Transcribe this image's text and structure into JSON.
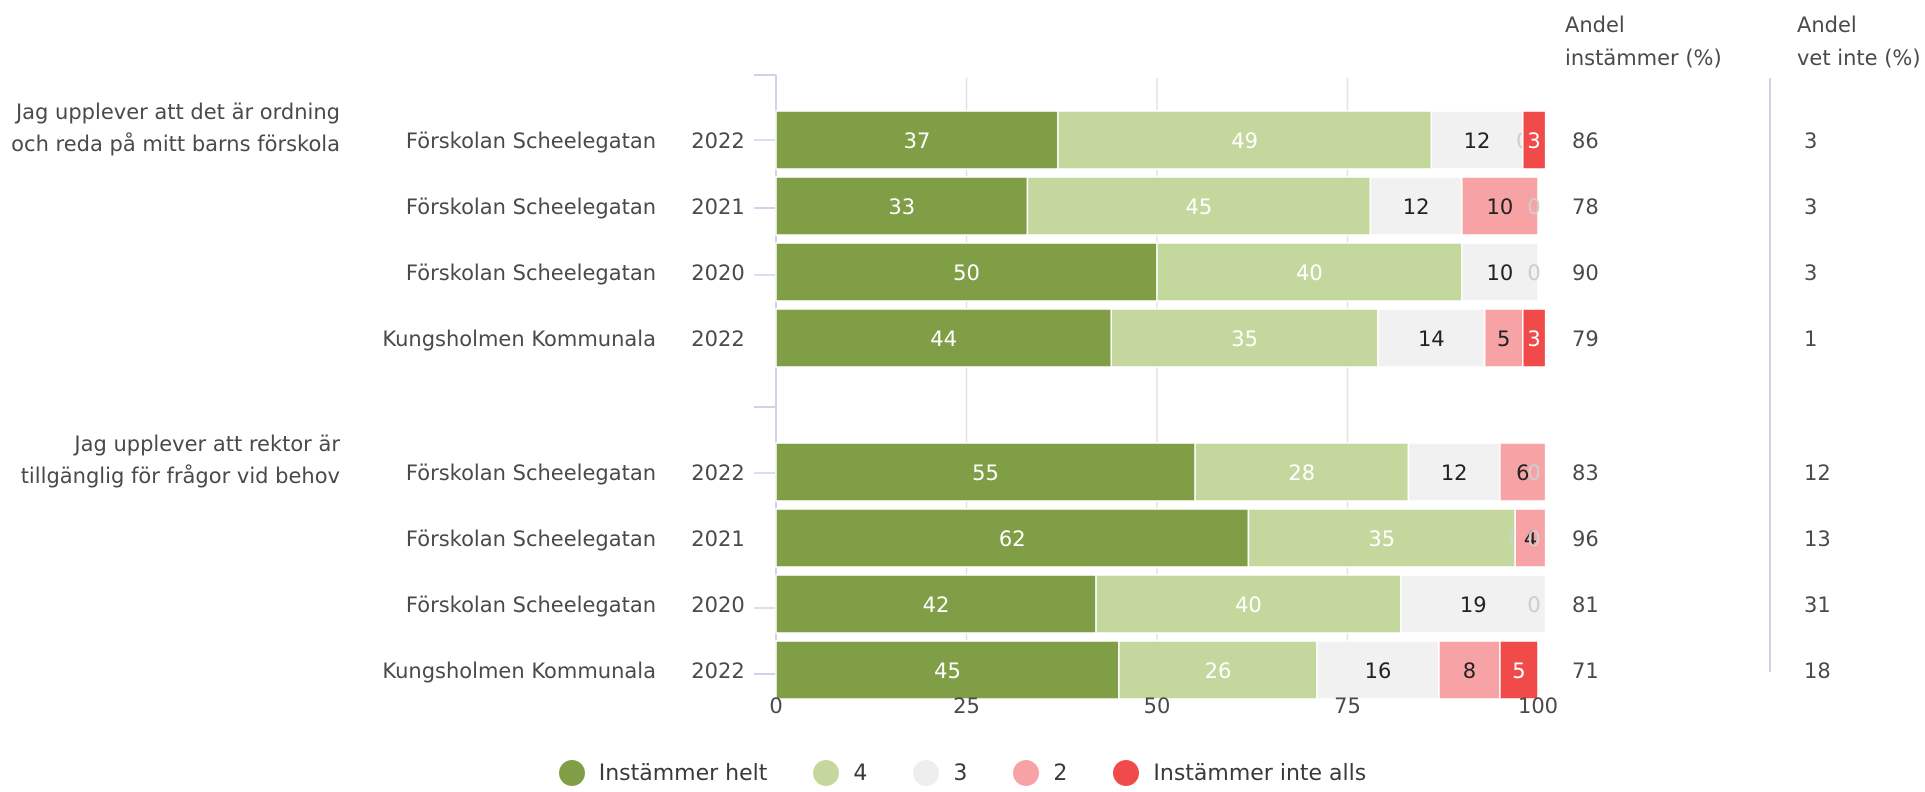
{
  "chart_data": {
    "type": "bar",
    "orientation": "horizontal",
    "stacked": true,
    "xlim": [
      0,
      100
    ],
    "xticks": [
      "0",
      "25",
      "50",
      "75",
      "100"
    ],
    "grid": true,
    "legend_position": "bottom",
    "side_columns": [
      "Andel instämmer (%)",
      "Andel vet inte (%)"
    ],
    "legend": [
      {
        "name": "Instämmer helt",
        "color": "#7f9e45"
      },
      {
        "name": "4",
        "color": "#c4d89d"
      },
      {
        "name": "3",
        "color": "#f1f1f1"
      },
      {
        "name": "2",
        "color": "#f7a3a6"
      },
      {
        "name": "Instämmer inte alls",
        "color": "#f04a4a"
      }
    ],
    "groups": [
      {
        "question": "Jag upplever att det är ordning och reda på mitt barns förskola",
        "rows": [
          {
            "unit": "Förskolan Scheelegatan",
            "year": "2022",
            "values": [
              37,
              49,
              12,
              0,
              3
            ],
            "agree": "86",
            "dontknow": "3"
          },
          {
            "unit": "Förskolan Scheelegatan",
            "year": "2021",
            "values": [
              33,
              45,
              12,
              10,
              0
            ],
            "agree": "78",
            "dontknow": "3"
          },
          {
            "unit": "Förskolan Scheelegatan",
            "year": "2020",
            "values": [
              50,
              40,
              10,
              0,
              0
            ],
            "agree": "90",
            "dontknow": "3"
          },
          {
            "unit": "Kungsholmen Kommunala",
            "year": "2022",
            "values": [
              44,
              35,
              14,
              5,
              3
            ],
            "agree": "79",
            "dontknow": "1"
          }
        ]
      },
      {
        "question": "Jag upplever att rektor är tillgänglig för frågor vid behov",
        "rows": [
          {
            "unit": "Förskolan Scheelegatan",
            "year": "2022",
            "values": [
              55,
              28,
              12,
              6,
              0
            ],
            "agree": "83",
            "dontknow": "12"
          },
          {
            "unit": "Förskolan Scheelegatan",
            "year": "2021",
            "values": [
              62,
              35,
              0,
              4,
              0
            ],
            "agree": "96",
            "dontknow": "13"
          },
          {
            "unit": "Förskolan Scheelegatan",
            "year": "2020",
            "values": [
              42,
              40,
              19,
              0,
              0
            ],
            "agree": "81",
            "dontknow": "31"
          },
          {
            "unit": "Kungsholmen Kommunala",
            "year": "2022",
            "values": [
              45,
              26,
              16,
              8,
              5
            ],
            "agree": "71",
            "dontknow": "18"
          }
        ]
      }
    ]
  }
}
